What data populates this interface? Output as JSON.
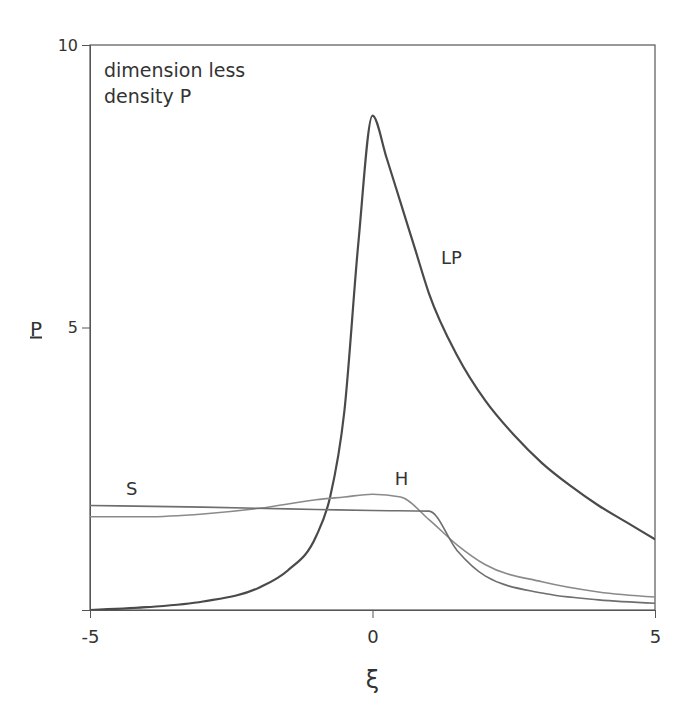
{
  "chart_data": {
    "type": "line",
    "annotation": [
      "dimension less",
      "density P"
    ],
    "x_label": "ξ",
    "y_label": "P",
    "xlim": [
      -5,
      5
    ],
    "ylim": [
      0,
      10
    ],
    "xticks": [
      -5,
      0,
      5
    ],
    "yticks": [
      5,
      10
    ],
    "grid": false,
    "series": [
      {
        "name": "LP",
        "color": "#4a4a4a",
        "x": [
          -5,
          -4,
          -3,
          -2,
          -1.5,
          -1,
          -0.75,
          -0.5,
          -0.25,
          0,
          0.25,
          0.5,
          0.75,
          1,
          1.5,
          2,
          2.5,
          3,
          3.5,
          4,
          4.5,
          5
        ],
        "values": [
          0.0,
          0.05,
          0.15,
          0.4,
          0.7,
          1.3,
          2.0,
          3.5,
          6.5,
          8.75,
          8.0,
          7.2,
          6.4,
          5.6,
          4.5,
          3.7,
          3.1,
          2.6,
          2.2,
          1.85,
          1.55,
          1.25
        ]
      },
      {
        "name": "H",
        "color": "#8a8a8a",
        "x": [
          -5,
          -4,
          -3,
          -2,
          -1,
          -0.5,
          0,
          0.5,
          1,
          1.5,
          2,
          3,
          4,
          5
        ],
        "values": [
          1.65,
          1.65,
          1.7,
          1.8,
          1.95,
          2.0,
          2.05,
          2.0,
          1.6,
          1.15,
          0.8,
          0.5,
          0.32,
          0.23
        ]
      },
      {
        "name": "S",
        "color": "#6e6e6e",
        "x": [
          -5,
          -3,
          -1,
          0,
          1,
          1.5,
          2,
          3,
          4,
          5
        ],
        "values": [
          1.85,
          1.82,
          1.78,
          1.76,
          1.75,
          1.05,
          0.6,
          0.3,
          0.18,
          0.12
        ]
      }
    ]
  }
}
